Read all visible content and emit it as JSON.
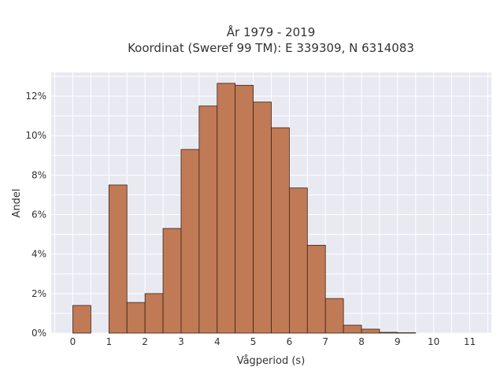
{
  "chart_data": {
    "type": "bar",
    "title": "År 1979 - 2019",
    "subtitle": "Koordinat (Sweref 99 TM): E 339309, N 6314083",
    "xlabel": "Vågperiod (s)",
    "ylabel": "Andel",
    "bin_width": 0.5,
    "bin_starts": [
      0,
      0.5,
      1,
      1.5,
      2,
      2.5,
      3,
      3.5,
      4,
      4.5,
      5,
      5.5,
      6,
      6.5,
      7,
      7.5,
      8,
      8.5,
      9,
      9.5,
      10,
      10.5
    ],
    "values": [
      1.4,
      0,
      7.5,
      1.55,
      2.0,
      5.3,
      9.3,
      11.5,
      12.65,
      12.55,
      11.7,
      10.4,
      7.35,
      4.45,
      1.75,
      0.4,
      0.2,
      0.04,
      0.02,
      0,
      0,
      0
    ],
    "xlim": [
      -0.6,
      11.6
    ],
    "ylim": [
      0,
      13.2
    ],
    "x_ticks": [
      0,
      1,
      2,
      3,
      4,
      5,
      6,
      7,
      8,
      9,
      10,
      11
    ],
    "x_tick_labels": [
      "0",
      "1",
      "2",
      "3",
      "4",
      "5",
      "6",
      "7",
      "8",
      "9",
      "10",
      "11"
    ],
    "y_ticks": [
      0,
      2,
      4,
      6,
      8,
      10,
      12
    ],
    "y_tick_labels": [
      "0%",
      "2%",
      "4%",
      "6%",
      "8%",
      "10%",
      "12%"
    ],
    "grid": true,
    "colors": {
      "bar_fill": "#c07a55",
      "bar_edge": "#3a2418",
      "plot_background": "#e9e9f2",
      "grid": "#ffffff"
    }
  }
}
